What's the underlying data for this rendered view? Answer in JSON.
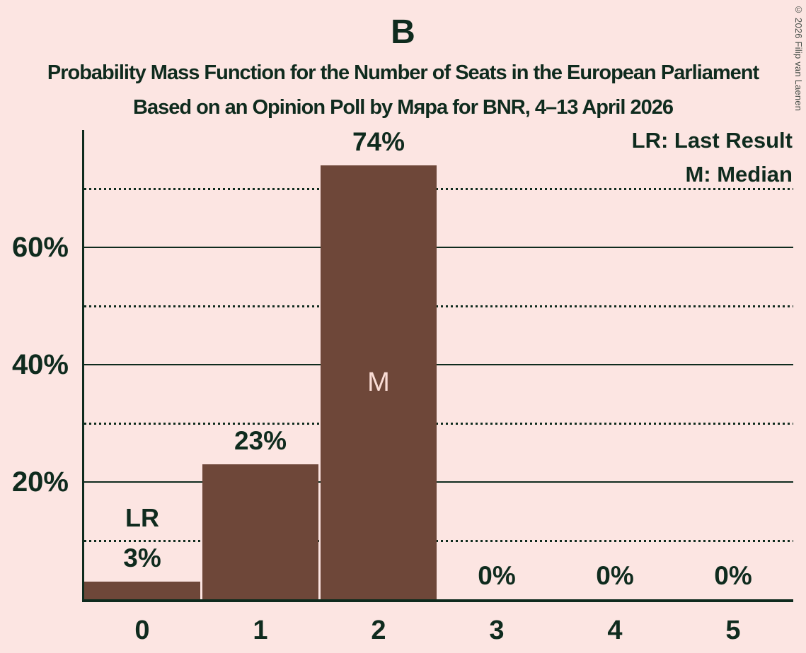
{
  "title": "B",
  "subtitle1": "Probability Mass Function for the Number of Seats in the European Parliament",
  "subtitle2": "Based on an Opinion Poll by Мяра for BNR, 4–13 April 2026",
  "copyright": "© 2026 Filip van Laenen",
  "legend": {
    "lr_label": "LR: Last Result",
    "m_label": "M: Median"
  },
  "colors": {
    "background": "#fce5e2",
    "ink": "#0f2b1e",
    "bar": "#6e4739",
    "median_label": "#f9dcd5"
  },
  "chart_data": {
    "type": "bar",
    "title": "B",
    "categories": [
      "0",
      "1",
      "2",
      "3",
      "4",
      "5"
    ],
    "values": [
      3,
      23,
      74,
      0,
      0,
      0
    ],
    "value_labels": [
      "3%",
      "23%",
      "74%",
      "0%",
      "0%",
      "0%"
    ],
    "annotations": {
      "last_result_category_index": 0,
      "last_result_label": "LR",
      "median_category_index": 2,
      "median_label": "M"
    },
    "yticks": [
      {
        "value": 20,
        "label": "20%"
      },
      {
        "value": 40,
        "label": "40%"
      },
      {
        "value": 60,
        "label": "60%"
      }
    ],
    "solid_gridlines": [
      20,
      40,
      60
    ],
    "dotted_gridlines": [
      10,
      30,
      50,
      70
    ],
    "ylim": [
      0,
      80
    ],
    "grid": true,
    "legend_position": "top-right"
  }
}
